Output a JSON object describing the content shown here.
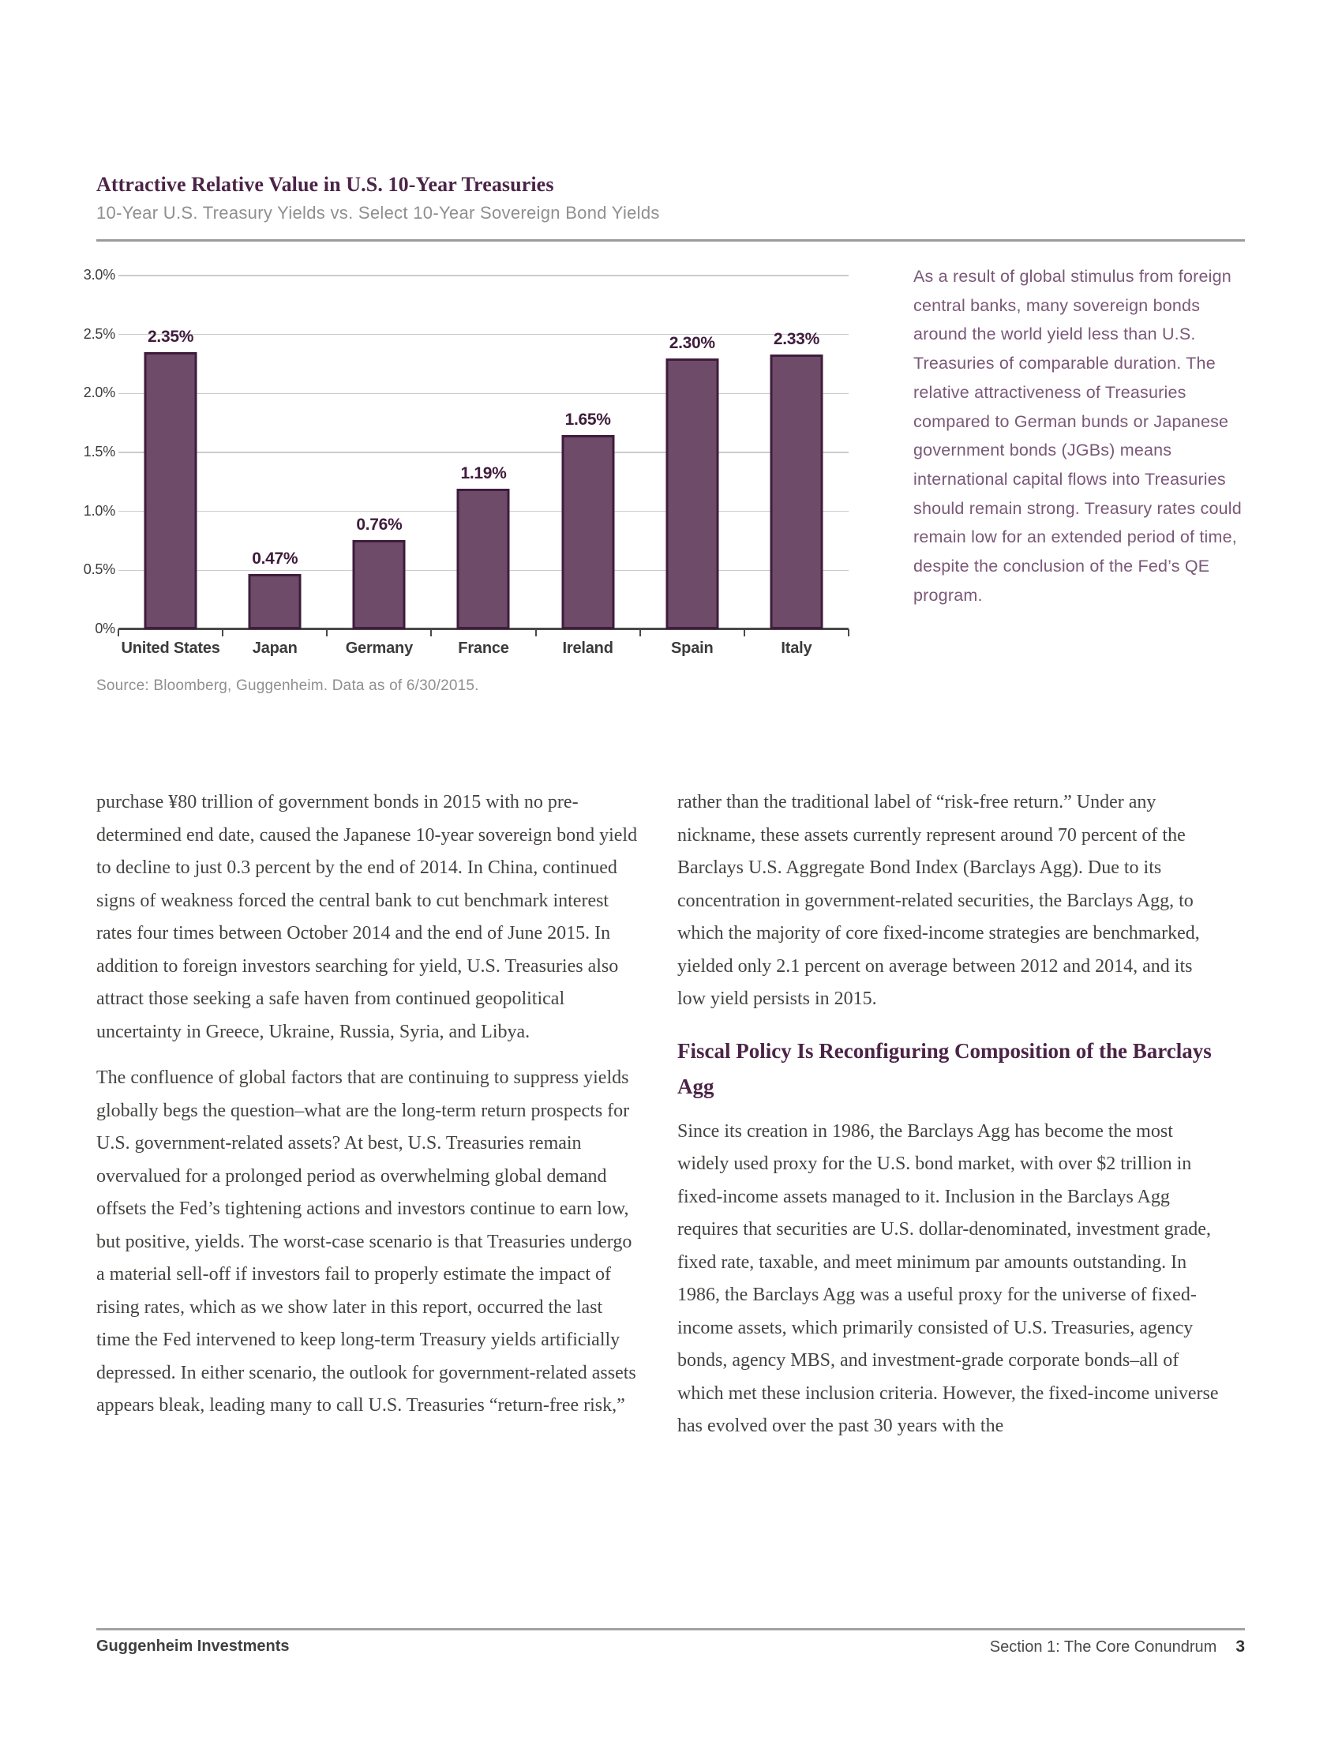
{
  "header": {
    "title": "Attractive Relative Value in U.S. 10-Year Treasuries",
    "subtitle": "10-Year U.S. Treasury Yields vs. Select 10-Year Sovereign Bond Yields"
  },
  "chart_data": {
    "type": "bar",
    "title": "Attractive Relative Value in U.S. 10-Year Treasuries",
    "subtitle": "10-Year U.S. Treasury Yields vs. Select 10-Year Sovereign Bond Yields",
    "categories": [
      "United States",
      "Japan",
      "Germany",
      "France",
      "Ireland",
      "Spain",
      "Italy"
    ],
    "values": [
      2.35,
      0.47,
      0.76,
      1.19,
      1.65,
      2.3,
      2.33
    ],
    "value_labels": [
      "2.35%",
      "0.47%",
      "0.76%",
      "1.19%",
      "1.65%",
      "2.30%",
      "2.33%"
    ],
    "yticks": [
      "3.0%",
      "2.5%",
      "2.0%",
      "1.5%",
      "1.0%",
      "0.5%",
      "0%"
    ],
    "ylim": [
      0,
      3
    ],
    "grid": "horizontal",
    "legend": "none",
    "bar_color": "#6d4b69",
    "bar_border_color": "#3f1c3c"
  },
  "source_note": "Source: Bloomberg, Guggenheim. Data as of 6/30/2015.",
  "sidebar_note": "As a result of global stimulus from foreign central banks, many sovereign bonds around the world yield less than U.S. Treasuries of comparable duration. The relative attractiveness of Treasuries compared to German bunds or Japanese government bonds (JGBs) means international capital flows into Treasuries should remain strong. Treasury rates could remain low for an extended period of time, despite the conclusion of the Fed’s QE program.",
  "body": {
    "left_paragraphs": [
      "purchase ¥80 trillion of government bonds in 2015 with no pre-determined end date, caused the Japanese 10-year sovereign bond yield to decline to just 0.3 percent by the end of 2014. In China, continued signs of weakness forced the central bank to cut benchmark interest rates four times between October 2014 and the end of June 2015. In addition to foreign investors searching for yield, U.S. Treasuries also attract those seeking a safe haven from continued geopolitical uncertainty in Greece, Ukraine, Russia, Syria, and Libya.",
      "The confluence of global factors that are continuing to suppress yields globally begs the question–what are the long-term return prospects for U.S. government-related assets? At best, U.S. Treasuries remain overvalued for a prolonged period as overwhelming global demand offsets the Fed’s tightening actions and investors continue to earn low, but positive, yields. The worst-case scenario is that Treasuries undergo a material sell-off if investors fail to properly estimate the impact of rising rates, which as we show later in this report, occurred the last time the Fed intervened to keep long-term Treasury yields artificially depressed. In either scenario, the outlook for government-related assets appears bleak, leading many to call U.S. Treasuries “return-free risk,”"
    ],
    "right_paragraph_1": "rather than the traditional label of “risk-free return.” Under any nickname, these assets currently represent around 70 percent of the Barclays U.S. Aggregate Bond Index (Barclays Agg). Due to its concentration in government-related securities, the Barclays Agg, to which the majority of core fixed-income strategies are benchmarked, yielded only 2.1 percent on average between 2012 and 2014, and its low yield persists in 2015.",
    "right_heading": "Fiscal Policy Is Reconfiguring Composition of the Barclays Agg",
    "right_paragraph_2": "Since its creation in 1986, the Barclays Agg has become the most widely used proxy for the U.S. bond market, with over $2 trillion in fixed-income assets managed to it. Inclusion in the Barclays Agg requires that securities are U.S. dollar-denominated, investment grade, fixed rate, taxable, and meet minimum par amounts outstanding. In 1986, the Barclays Agg was a useful proxy for the universe of fixed-income assets, which primarily consisted of U.S. Treasuries, agency bonds, agency MBS, and investment-grade corporate bonds–all of which met these inclusion criteria. However, the fixed-income universe has evolved over the past 30 years with the"
  },
  "footer": {
    "brand": "Guggenheim Investments",
    "section": "Section 1: The Core Conundrum",
    "page_number": "3"
  },
  "colors": {
    "accent_purple": "#4b2447",
    "bar_fill": "#6d4b69",
    "bar_border": "#3f1c3c",
    "sidebar_text": "#7a5878",
    "body_text": "#454341",
    "muted_gray": "#8f8f8f",
    "rule_gray": "#9b9b9b"
  }
}
